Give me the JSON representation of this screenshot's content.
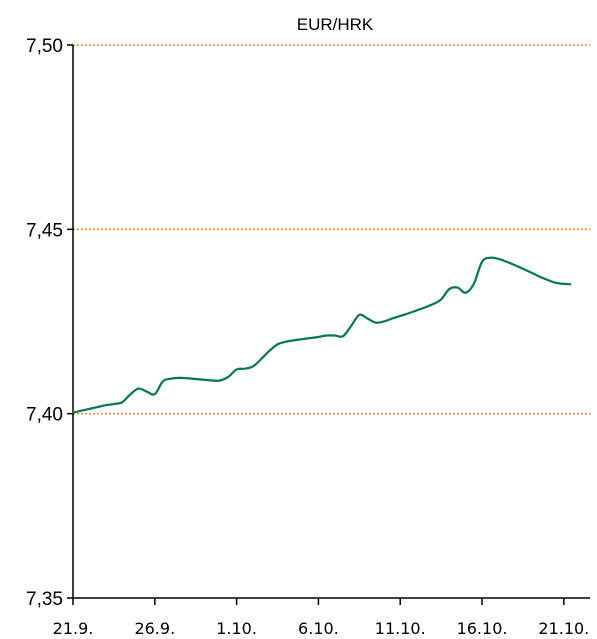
{
  "chart_data": {
    "type": "line",
    "title": "EUR/HRK",
    "xlabel": "",
    "ylabel": "",
    "ylim": [
      7.35,
      7.5
    ],
    "y_ticks": [
      "7,50",
      "7,45",
      "7,40",
      "7,35"
    ],
    "y_tick_values": [
      7.5,
      7.45,
      7.4,
      7.35
    ],
    "gridlines": [
      7.5,
      7.45,
      7.4
    ],
    "x_ticks": [
      "21.9.",
      "26.9.",
      "1.10.",
      "6.10.",
      "11.10.",
      "16.10.",
      "21.10."
    ],
    "x_tick_days": [
      0,
      5,
      10,
      15,
      20,
      25,
      30
    ],
    "xlim_days": [
      0,
      31.6
    ],
    "grid_color": "#E98B2E",
    "line_color": "#007A4D",
    "series": [
      {
        "points": [
          [
            0,
            7.4003
          ],
          [
            0.5,
            7.4008
          ],
          [
            1,
            7.4013
          ],
          [
            1.5,
            7.4018
          ],
          [
            2,
            7.4023
          ],
          [
            2.5,
            7.4026
          ],
          [
            3,
            7.4031
          ],
          [
            3.5,
            7.4052
          ],
          [
            4,
            7.4068
          ],
          [
            4.5,
            7.406
          ],
          [
            5,
            7.4053
          ],
          [
            5.5,
            7.4088
          ],
          [
            6,
            7.4095
          ],
          [
            6.5,
            7.4097
          ],
          [
            7,
            7.4096
          ],
          [
            7.5,
            7.4094
          ],
          [
            8,
            7.4092
          ],
          [
            8.5,
            7.409
          ],
          [
            9,
            7.409
          ],
          [
            9.5,
            7.41
          ],
          [
            10,
            7.412
          ],
          [
            10.5,
            7.4122
          ],
          [
            11,
            7.4128
          ],
          [
            11.5,
            7.4148
          ],
          [
            12,
            7.417
          ],
          [
            12.5,
            7.4188
          ],
          [
            13,
            7.4195
          ],
          [
            13.5,
            7.4199
          ],
          [
            14,
            7.4202
          ],
          [
            14.5,
            7.4205
          ],
          [
            15,
            7.4208
          ],
          [
            15.5,
            7.4212
          ],
          [
            16,
            7.4212
          ],
          [
            16.5,
            7.421
          ],
          [
            17,
            7.4238
          ],
          [
            17.5,
            7.4268
          ],
          [
            18,
            7.4258
          ],
          [
            18.5,
            7.4247
          ],
          [
            19,
            7.425
          ],
          [
            19.5,
            7.4258
          ],
          [
            20,
            7.4265
          ],
          [
            20.5,
            7.4272
          ],
          [
            21,
            7.428
          ],
          [
            21.5,
            7.4288
          ],
          [
            22,
            7.4297
          ],
          [
            22.5,
            7.431
          ],
          [
            23,
            7.4338
          ],
          [
            23.5,
            7.4342
          ],
          [
            24,
            7.4328
          ],
          [
            24.5,
            7.4352
          ],
          [
            25,
            7.4412
          ],
          [
            25.5,
            7.4423
          ],
          [
            26,
            7.442
          ],
          [
            26.5,
            7.4412
          ],
          [
            27,
            7.4403
          ],
          [
            27.5,
            7.4393
          ],
          [
            28,
            7.4383
          ],
          [
            28.5,
            7.4372
          ],
          [
            29,
            7.4363
          ],
          [
            29.5,
            7.4355
          ],
          [
            30,
            7.4352
          ],
          [
            30.4,
            7.4351
          ]
        ]
      }
    ]
  }
}
